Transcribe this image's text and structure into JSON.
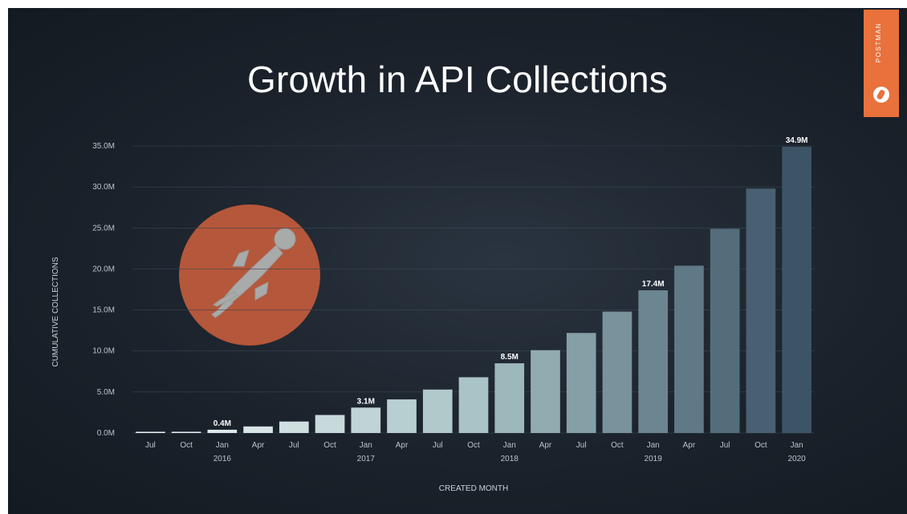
{
  "slide": {
    "title": "Growth in API Collections",
    "brand_text": "POSTMAN",
    "background_color": "#1b222b",
    "brand_color": "#e8713c",
    "logo_icon": "postman-rocket-astronaut-icon"
  },
  "chart_data": {
    "type": "bar",
    "title": "Growth in API Collections",
    "xlabel": "CREATED MONTH",
    "ylabel": "CUMULATIVE COLLECTIONS",
    "ylim": [
      0,
      35
    ],
    "y_ticks": [
      "0.0M",
      "5.0M",
      "10.0M",
      "15.0M",
      "20.0M",
      "25.0M",
      "30.0M",
      "35.0M"
    ],
    "y_tick_values": [
      0,
      5,
      10,
      15,
      20,
      25,
      30,
      35
    ],
    "grid": true,
    "categories": [
      {
        "month": "Jul",
        "year": ""
      },
      {
        "month": "Oct",
        "year": ""
      },
      {
        "month": "Jan",
        "year": "2016"
      },
      {
        "month": "Apr",
        "year": ""
      },
      {
        "month": "Jul",
        "year": ""
      },
      {
        "month": "Oct",
        "year": ""
      },
      {
        "month": "Jan",
        "year": "2017"
      },
      {
        "month": "Apr",
        "year": ""
      },
      {
        "month": "Jul",
        "year": ""
      },
      {
        "month": "Oct",
        "year": ""
      },
      {
        "month": "Jan",
        "year": "2018"
      },
      {
        "month": "Apr",
        "year": ""
      },
      {
        "month": "Jul",
        "year": ""
      },
      {
        "month": "Oct",
        "year": ""
      },
      {
        "month": "Jan",
        "year": "2019"
      },
      {
        "month": "Apr",
        "year": ""
      },
      {
        "month": "Jul",
        "year": ""
      },
      {
        "month": "Oct",
        "year": ""
      },
      {
        "month": "Jan",
        "year": "2020"
      }
    ],
    "values": [
      0.05,
      0.15,
      0.4,
      0.8,
      1.4,
      2.2,
      3.1,
      4.1,
      5.3,
      6.8,
      8.5,
      10.1,
      12.2,
      14.8,
      17.4,
      20.4,
      24.9,
      29.8,
      34.9
    ],
    "data_labels": {
      "2": "0.4M",
      "6": "3.1M",
      "10": "8.5M",
      "14": "17.4M",
      "18": "34.9M"
    },
    "bar_color_start": "#eef4f6",
    "bar_color_mid": "#a9c4c6",
    "bar_color_end": "#3c5466"
  }
}
